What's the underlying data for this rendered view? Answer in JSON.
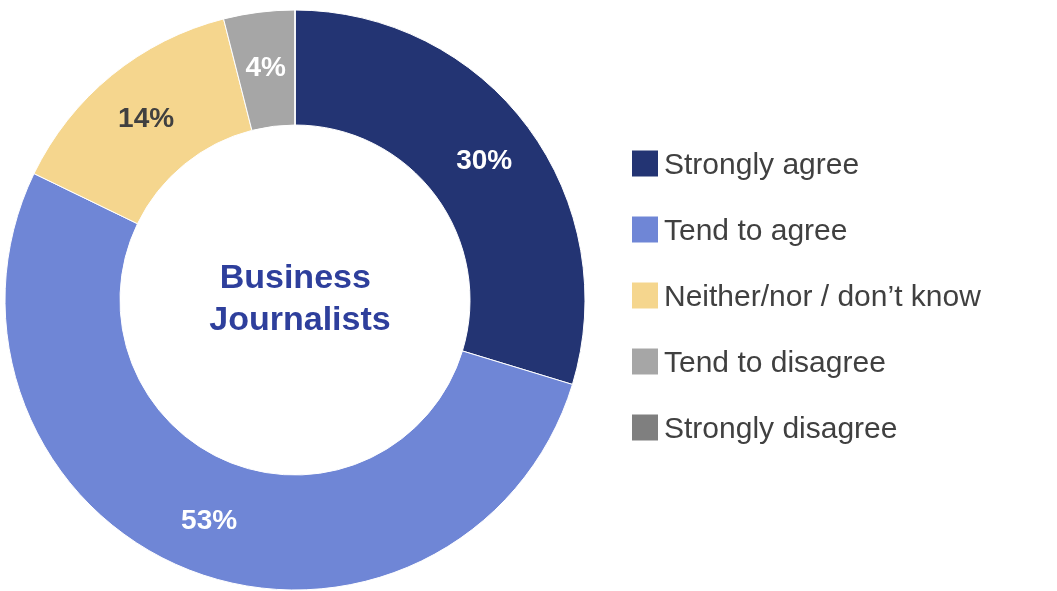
{
  "chart_data": {
    "type": "donut",
    "title": "Business Journalists",
    "categories": [
      "Strongly agree",
      "Tend to agree",
      "Neither/nor / don’t know",
      "Tend to disagree",
      "Strongly disagree"
    ],
    "values": [
      30,
      53,
      14,
      4,
      0
    ],
    "colors": [
      "#233473",
      "#6f86d6",
      "#f5d68e",
      "#a6a6a6",
      "#7f7f7f"
    ],
    "value_labels": [
      "30%",
      "53%",
      "14%",
      "4%",
      null
    ],
    "legend": "right"
  }
}
